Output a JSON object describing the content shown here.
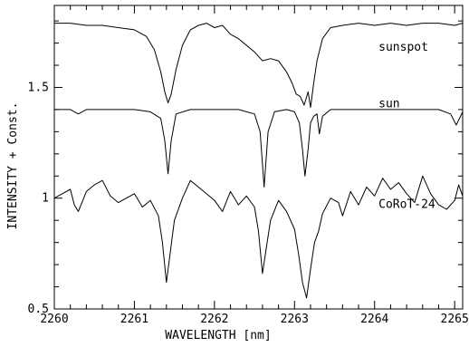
{
  "chart_data": {
    "type": "line",
    "xlabel": "WAVELENGTH [nm]",
    "ylabel": "INTENSITY + Const.",
    "xlim": [
      2260,
      2265.1
    ],
    "ylim": [
      0.5,
      1.87
    ],
    "grid": false,
    "x_ticks": [
      {
        "value": 2260,
        "label": "2260"
      },
      {
        "value": 2261,
        "label": "2261"
      },
      {
        "value": 2262,
        "label": "2262"
      },
      {
        "value": 2263,
        "label": "2263"
      },
      {
        "value": 2264,
        "label": "2264"
      },
      {
        "value": 2265,
        "label": "2265"
      }
    ],
    "y_ticks": [
      {
        "value": 0.5,
        "label": "0.5"
      },
      {
        "value": 1,
        "label": "1"
      },
      {
        "value": 1.5,
        "label": "1.5"
      }
    ],
    "series": [
      {
        "name": "sunspot",
        "label_pos": [
          2264.05,
          1.665
        ],
        "x": [
          2260.0,
          2260.2,
          2260.4,
          2260.6,
          2260.8,
          2261.0,
          2261.15,
          2261.25,
          2261.33,
          2261.38,
          2261.42,
          2261.46,
          2261.52,
          2261.6,
          2261.7,
          2261.8,
          2261.9,
          2262.0,
          2262.1,
          2262.2,
          2262.3,
          2262.4,
          2262.5,
          2262.6,
          2262.7,
          2262.8,
          2262.9,
          2262.97,
          2263.02,
          2263.07,
          2263.12,
          2263.17,
          2263.2,
          2263.24,
          2263.28,
          2263.35,
          2263.45,
          2263.6,
          2263.8,
          2264.0,
          2264.2,
          2264.4,
          2264.6,
          2264.8,
          2265.0,
          2265.1
        ],
        "y": [
          1.79,
          1.79,
          1.78,
          1.78,
          1.77,
          1.76,
          1.73,
          1.67,
          1.57,
          1.48,
          1.43,
          1.47,
          1.58,
          1.69,
          1.76,
          1.78,
          1.79,
          1.77,
          1.78,
          1.74,
          1.72,
          1.69,
          1.66,
          1.62,
          1.63,
          1.62,
          1.57,
          1.52,
          1.47,
          1.46,
          1.42,
          1.48,
          1.41,
          1.52,
          1.62,
          1.72,
          1.77,
          1.78,
          1.79,
          1.78,
          1.79,
          1.78,
          1.79,
          1.79,
          1.78,
          1.79
        ]
      },
      {
        "name": "sun",
        "label_pos": [
          2264.05,
          1.41
        ],
        "x": [
          2260.0,
          2260.2,
          2260.3,
          2260.4,
          2260.6,
          2260.8,
          2261.0,
          2261.2,
          2261.33,
          2261.38,
          2261.42,
          2261.46,
          2261.52,
          2261.7,
          2261.9,
          2262.1,
          2262.3,
          2262.5,
          2262.57,
          2262.62,
          2262.67,
          2262.75,
          2262.9,
          2263.0,
          2263.06,
          2263.1,
          2263.13,
          2263.17,
          2263.2,
          2263.24,
          2263.28,
          2263.31,
          2263.35,
          2263.45,
          2263.6,
          2263.8,
          2264.0,
          2264.2,
          2264.4,
          2264.6,
          2264.8,
          2264.95,
          2265.02,
          2265.06,
          2265.1
        ],
        "y": [
          1.4,
          1.4,
          1.38,
          1.4,
          1.4,
          1.4,
          1.4,
          1.39,
          1.36,
          1.26,
          1.11,
          1.26,
          1.38,
          1.4,
          1.4,
          1.4,
          1.4,
          1.38,
          1.3,
          1.05,
          1.3,
          1.39,
          1.4,
          1.39,
          1.34,
          1.22,
          1.1,
          1.22,
          1.34,
          1.37,
          1.38,
          1.29,
          1.37,
          1.4,
          1.4,
          1.4,
          1.4,
          1.4,
          1.4,
          1.4,
          1.4,
          1.38,
          1.33,
          1.36,
          1.39
        ]
      },
      {
        "name": "CoRoT-24",
        "label_pos": [
          2264.05,
          0.955
        ],
        "x": [
          2260.0,
          2260.1,
          2260.2,
          2260.25,
          2260.3,
          2260.4,
          2260.5,
          2260.6,
          2260.7,
          2260.8,
          2260.9,
          2261.0,
          2261.1,
          2261.2,
          2261.3,
          2261.35,
          2261.4,
          2261.45,
          2261.5,
          2261.6,
          2261.7,
          2261.8,
          2261.9,
          2262.0,
          2262.1,
          2262.2,
          2262.3,
          2262.4,
          2262.5,
          2262.55,
          2262.6,
          2262.65,
          2262.7,
          2262.8,
          2262.9,
          2263.0,
          2263.05,
          2263.1,
          2263.15,
          2263.2,
          2263.25,
          2263.3,
          2263.35,
          2263.45,
          2263.55,
          2263.6,
          2263.7,
          2263.8,
          2263.9,
          2264.0,
          2264.1,
          2264.2,
          2264.3,
          2264.4,
          2264.5,
          2264.6,
          2264.7,
          2264.8,
          2264.9,
          2265.0,
          2265.05,
          2265.1
        ],
        "y": [
          1.0,
          1.02,
          1.04,
          0.97,
          0.94,
          1.03,
          1.06,
          1.08,
          1.01,
          0.98,
          1.0,
          1.02,
          0.96,
          0.99,
          0.92,
          0.8,
          0.62,
          0.76,
          0.9,
          1.0,
          1.08,
          1.05,
          1.02,
          0.99,
          0.94,
          1.03,
          0.97,
          1.01,
          0.96,
          0.85,
          0.66,
          0.78,
          0.9,
          0.99,
          0.94,
          0.86,
          0.75,
          0.62,
          0.55,
          0.68,
          0.8,
          0.85,
          0.93,
          1.0,
          0.98,
          0.92,
          1.03,
          0.97,
          1.05,
          1.01,
          1.09,
          1.04,
          1.07,
          1.02,
          0.98,
          1.1,
          1.02,
          0.97,
          0.95,
          0.99,
          1.06,
          1.01
        ]
      }
    ]
  }
}
